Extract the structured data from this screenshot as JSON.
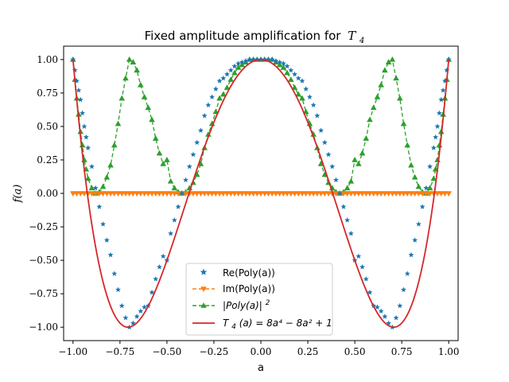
{
  "chart_data": {
    "type": "line",
    "title": "Fixed amplitude amplification for",
    "title_math": "T",
    "title_math_sub": "4",
    "xlabel": "a",
    "ylabel_math": "f(a)",
    "xlim": [
      -1.05,
      1.05
    ],
    "ylim": [
      -1.1,
      1.1
    ],
    "x_ticks": [
      -1.0,
      -0.75,
      -0.5,
      -0.25,
      0.0,
      0.25,
      0.5,
      0.75,
      1.0
    ],
    "x_tick_labels": [
      "−1.00",
      "−0.75",
      "−0.50",
      "−0.25",
      "0.00",
      "0.25",
      "0.50",
      "0.75",
      "1.00"
    ],
    "y_ticks": [
      -1.0,
      -0.75,
      -0.5,
      -0.25,
      0.0,
      0.25,
      0.5,
      0.75,
      1.0
    ],
    "y_tick_labels": [
      "−1.00",
      "−0.75",
      "−0.50",
      "−0.25",
      "0.00",
      "0.25",
      "0.50",
      "0.75",
      "1.00"
    ],
    "grid": false,
    "legend_position": "lower-center",
    "series": [
      {
        "name": "Re(Poly(a))",
        "style": "scatter",
        "marker": "star",
        "color": "#1f77b4",
        "x": [
          -1.0,
          -0.99,
          -0.98,
          -0.97,
          -0.96,
          -0.95,
          -0.94,
          -0.93,
          -0.92,
          -0.9,
          -0.88,
          -0.86,
          -0.84,
          -0.82,
          -0.8,
          -0.78,
          -0.76,
          -0.74,
          -0.72,
          -0.7,
          -0.68,
          -0.66,
          -0.64,
          -0.62,
          -0.6,
          -0.58,
          -0.56,
          -0.54,
          -0.52,
          -0.5,
          -0.48,
          -0.46,
          -0.44,
          -0.42,
          -0.4,
          -0.38,
          -0.36,
          -0.34,
          -0.32,
          -0.3,
          -0.28,
          -0.26,
          -0.24,
          -0.22,
          -0.2,
          -0.18,
          -0.16,
          -0.14,
          -0.12,
          -0.1,
          -0.08,
          -0.06,
          -0.04,
          -0.02,
          0.0,
          0.02,
          0.04,
          0.06,
          0.08,
          0.1,
          0.12,
          0.14,
          0.16,
          0.18,
          0.2,
          0.22,
          0.24,
          0.26,
          0.28,
          0.3,
          0.32,
          0.34,
          0.36,
          0.38,
          0.4,
          0.42,
          0.44,
          0.46,
          0.48,
          0.5,
          0.52,
          0.54,
          0.56,
          0.58,
          0.6,
          0.62,
          0.64,
          0.66,
          0.68,
          0.7,
          0.72,
          0.74,
          0.76,
          0.78,
          0.8,
          0.82,
          0.84,
          0.86,
          0.88,
          0.9,
          0.92,
          0.93,
          0.94,
          0.95,
          0.96,
          0.97,
          0.98,
          0.99,
          1.0
        ],
        "y": [
          1.0,
          0.92,
          0.84,
          0.77,
          0.7,
          0.6,
          0.5,
          0.42,
          0.34,
          0.2,
          0.04,
          -0.1,
          -0.23,
          -0.35,
          -0.46,
          -0.6,
          -0.72,
          -0.84,
          -0.93,
          -1.0,
          -0.97,
          -0.92,
          -0.88,
          -0.85,
          -0.84,
          -0.74,
          -0.64,
          -0.55,
          -0.47,
          -0.5,
          -0.3,
          -0.2,
          -0.1,
          0.0,
          0.1,
          0.2,
          0.29,
          0.38,
          0.47,
          0.58,
          0.66,
          0.72,
          0.78,
          0.84,
          0.86,
          0.89,
          0.92,
          0.95,
          0.97,
          0.98,
          0.99,
          1.0,
          1.0,
          1.0,
          1.0,
          1.0,
          1.0,
          1.0,
          0.99,
          0.98,
          0.97,
          0.95,
          0.92,
          0.89,
          0.86,
          0.84,
          0.78,
          0.72,
          0.66,
          0.58,
          0.47,
          0.38,
          0.29,
          0.2,
          0.1,
          0.0,
          -0.1,
          -0.2,
          -0.3,
          -0.5,
          -0.47,
          -0.55,
          -0.64,
          -0.74,
          -0.84,
          -0.85,
          -0.88,
          -0.92,
          -0.97,
          -1.0,
          -0.93,
          -0.84,
          -0.72,
          -0.6,
          -0.46,
          -0.35,
          -0.23,
          -0.1,
          0.04,
          0.2,
          0.34,
          0.42,
          0.5,
          0.6,
          0.7,
          0.77,
          0.84,
          0.92,
          1.0
        ]
      },
      {
        "name": "Im(Poly(a))",
        "style": "dashed-line-markers",
        "marker": "triangle-down",
        "color": "#ff7f0e",
        "x": [
          -1.0,
          -0.98,
          -0.96,
          -0.94,
          -0.92,
          -0.9,
          -0.88,
          -0.86,
          -0.84,
          -0.82,
          -0.8,
          -0.78,
          -0.76,
          -0.74,
          -0.72,
          -0.7,
          -0.68,
          -0.66,
          -0.64,
          -0.62,
          -0.6,
          -0.58,
          -0.56,
          -0.54,
          -0.52,
          -0.5,
          -0.48,
          -0.46,
          -0.44,
          -0.42,
          -0.4,
          -0.38,
          -0.36,
          -0.34,
          -0.32,
          -0.3,
          -0.28,
          -0.26,
          -0.24,
          -0.22,
          -0.2,
          -0.18,
          -0.16,
          -0.14,
          -0.12,
          -0.1,
          -0.08,
          -0.06,
          -0.04,
          -0.02,
          0.0,
          0.02,
          0.04,
          0.06,
          0.08,
          0.1,
          0.12,
          0.14,
          0.16,
          0.18,
          0.2,
          0.22,
          0.24,
          0.26,
          0.28,
          0.3,
          0.32,
          0.34,
          0.36,
          0.38,
          0.4,
          0.42,
          0.44,
          0.46,
          0.48,
          0.5,
          0.52,
          0.54,
          0.56,
          0.58,
          0.6,
          0.62,
          0.64,
          0.66,
          0.68,
          0.7,
          0.72,
          0.74,
          0.76,
          0.78,
          0.8,
          0.82,
          0.84,
          0.86,
          0.88,
          0.9,
          0.92,
          0.94,
          0.96,
          0.98,
          1.0
        ],
        "y": [
          0.0,
          0.0,
          0.0,
          0.0,
          0.0,
          0.0,
          0.0,
          0.0,
          0.0,
          0.0,
          0.0,
          0.0,
          0.0,
          0.0,
          0.0,
          0.0,
          0.0,
          0.0,
          0.0,
          0.0,
          0.0,
          0.0,
          0.0,
          0.0,
          0.0,
          0.0,
          0.0,
          0.0,
          0.0,
          0.0,
          0.0,
          0.0,
          0.0,
          0.0,
          0.0,
          0.0,
          0.0,
          0.0,
          0.0,
          0.0,
          0.0,
          0.0,
          0.0,
          0.0,
          0.0,
          0.0,
          0.0,
          0.0,
          0.0,
          0.0,
          0.0,
          0.0,
          0.0,
          0.0,
          0.0,
          0.0,
          0.0,
          0.0,
          0.0,
          0.0,
          0.0,
          0.0,
          0.0,
          0.0,
          0.0,
          0.0,
          0.0,
          0.0,
          0.0,
          0.0,
          0.0,
          0.0,
          0.0,
          0.0,
          0.0,
          0.0,
          0.0,
          0.0,
          0.0,
          0.0,
          0.0,
          0.0,
          0.0,
          0.0,
          0.0,
          0.0,
          0.0,
          0.0,
          0.0,
          0.0,
          0.0,
          0.0,
          0.0,
          0.0,
          0.0,
          0.0,
          0.0,
          0.0,
          0.0,
          0.0,
          0.0
        ]
      },
      {
        "name": "|Poly(a)|²",
        "name_math": "|Poly(a)|",
        "name_sup": "2",
        "style": "dashed-line-markers",
        "marker": "triangle-up",
        "color": "#2ca02c",
        "x": [
          -1.0,
          -0.99,
          -0.98,
          -0.97,
          -0.96,
          -0.95,
          -0.94,
          -0.93,
          -0.92,
          -0.9,
          -0.88,
          -0.86,
          -0.84,
          -0.82,
          -0.8,
          -0.78,
          -0.76,
          -0.74,
          -0.72,
          -0.7,
          -0.68,
          -0.66,
          -0.64,
          -0.62,
          -0.6,
          -0.58,
          -0.56,
          -0.54,
          -0.52,
          -0.5,
          -0.48,
          -0.46,
          -0.44,
          -0.42,
          -0.4,
          -0.38,
          -0.36,
          -0.34,
          -0.32,
          -0.3,
          -0.28,
          -0.26,
          -0.24,
          -0.22,
          -0.2,
          -0.18,
          -0.16,
          -0.14,
          -0.12,
          -0.1,
          -0.08,
          -0.06,
          -0.04,
          -0.02,
          0.0,
          0.02,
          0.04,
          0.06,
          0.08,
          0.1,
          0.12,
          0.14,
          0.16,
          0.18,
          0.2,
          0.22,
          0.24,
          0.26,
          0.28,
          0.3,
          0.32,
          0.34,
          0.36,
          0.38,
          0.4,
          0.42,
          0.44,
          0.46,
          0.48,
          0.5,
          0.52,
          0.54,
          0.56,
          0.58,
          0.6,
          0.62,
          0.64,
          0.66,
          0.68,
          0.7,
          0.72,
          0.74,
          0.76,
          0.78,
          0.8,
          0.82,
          0.84,
          0.86,
          0.88,
          0.9,
          0.92,
          0.93,
          0.94,
          0.95,
          0.96,
          0.97,
          0.98,
          0.99,
          1.0
        ],
        "y": [
          1.0,
          0.85,
          0.71,
          0.59,
          0.46,
          0.36,
          0.25,
          0.18,
          0.11,
          0.04,
          0.0,
          0.01,
          0.05,
          0.12,
          0.21,
          0.36,
          0.52,
          0.71,
          0.86,
          1.0,
          0.98,
          0.92,
          0.81,
          0.72,
          0.64,
          0.55,
          0.41,
          0.3,
          0.22,
          0.25,
          0.09,
          0.04,
          0.01,
          0.0,
          0.01,
          0.04,
          0.08,
          0.14,
          0.22,
          0.34,
          0.44,
          0.52,
          0.61,
          0.71,
          0.74,
          0.79,
          0.85,
          0.9,
          0.94,
          0.96,
          0.98,
          1.0,
          1.0,
          1.0,
          1.0,
          1.0,
          1.0,
          1.0,
          0.98,
          0.96,
          0.94,
          0.9,
          0.85,
          0.79,
          0.74,
          0.71,
          0.61,
          0.52,
          0.44,
          0.34,
          0.22,
          0.14,
          0.08,
          0.04,
          0.01,
          0.0,
          0.01,
          0.04,
          0.09,
          0.25,
          0.22,
          0.3,
          0.41,
          0.55,
          0.64,
          0.72,
          0.81,
          0.92,
          0.98,
          1.0,
          0.86,
          0.71,
          0.52,
          0.36,
          0.21,
          0.12,
          0.05,
          0.01,
          0.0,
          0.04,
          0.11,
          0.18,
          0.25,
          0.36,
          0.46,
          0.59,
          0.71,
          0.85,
          1.0
        ]
      },
      {
        "name": "T₄(a) = 8a⁴ − 8a² + 1",
        "name_math": "T",
        "name_math_sub": "4",
        "name_math_rest": "(a) = 8a⁴ − 8a² + 1",
        "style": "solid-line",
        "color": "#d62728",
        "function": "8a^4 - 8a^2 + 1",
        "x_range": [
          -1.0,
          1.0
        ]
      }
    ]
  }
}
